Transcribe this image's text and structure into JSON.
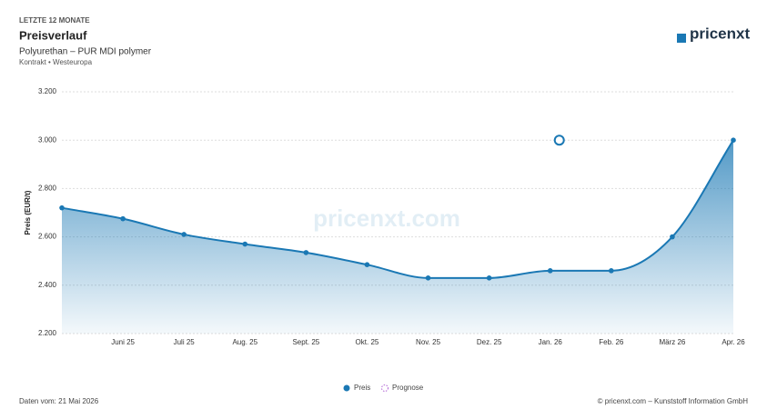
{
  "header": {
    "eyebrow": "LETZTE 12 MONATE",
    "title": "Preisverlauf",
    "product": "Polyurethan – PUR MDI polymer",
    "market": "Kontrakt • Westeuropa",
    "logo": "pricenxt"
  },
  "chart_data": {
    "type": "area",
    "y_label": "Preis (EUR/t)",
    "watermark": "pricenxt.com",
    "categories": [
      null,
      "Juni 25",
      "Juli 25",
      "Aug. 25",
      "Sept. 25",
      "Okt. 25",
      "Nov. 25",
      "Dez. 25",
      "Jan. 26",
      "Feb. 26",
      "März 26",
      "Apr. 26"
    ],
    "series": [
      {
        "name": "Preis",
        "color": "#1a78b4",
        "values": [
          2720,
          2675,
          2610,
          2570,
          2535,
          2485,
          2430,
          2430,
          2460,
          2460,
          2600,
          3000
        ]
      },
      {
        "name": "Prognose",
        "color": "#b266d6",
        "marker_color": "#1a78b4",
        "values": [
          null,
          null,
          null,
          null,
          null,
          null,
          null,
          null,
          3000,
          null,
          null,
          null
        ]
      }
    ],
    "ylim": [
      2200,
      3200
    ],
    "yticks": [
      {
        "value": 2200,
        "label": "2.200"
      },
      {
        "value": 2400,
        "label": "2.400"
      },
      {
        "value": 2600,
        "label": "2.600"
      },
      {
        "value": 2800,
        "label": "2.800"
      },
      {
        "value": 3000,
        "label": "3.000"
      },
      {
        "value": 3200,
        "label": "3.200"
      }
    ],
    "grid": true
  },
  "footer": {
    "date": "Daten vom: 21 Mai 2026",
    "copyright": "© pricenxt.com – Kunststoff Information GmbH"
  }
}
